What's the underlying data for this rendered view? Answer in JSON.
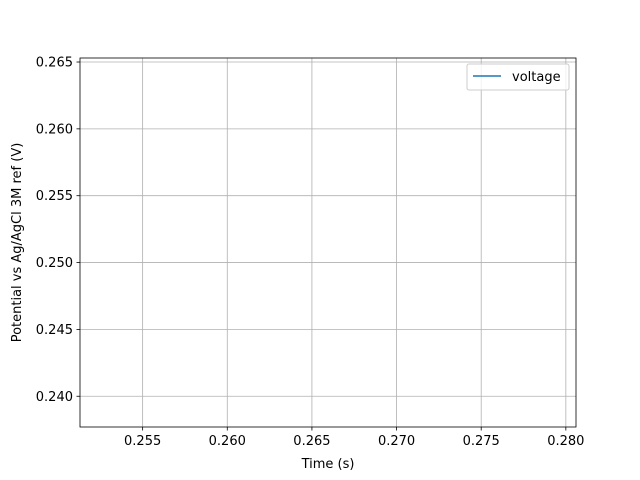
{
  "chart_data": {
    "type": "line",
    "xlabel": "Time (s)",
    "ylabel": "Potential vs Ag/AgCl 3M ref (V)",
    "xlim": [
      0.2513,
      0.2806
    ],
    "ylim": [
      0.2377,
      0.2653
    ],
    "x_ticks": [
      0.255,
      0.26,
      0.265,
      0.27,
      0.275,
      0.28
    ],
    "y_ticks": [
      0.24,
      0.245,
      0.25,
      0.255,
      0.26,
      0.265
    ],
    "x_tick_labels": [
      "0.255",
      "0.260",
      "0.265",
      "0.270",
      "0.275",
      "0.280"
    ],
    "y_tick_labels": [
      "0.240",
      "0.245",
      "0.250",
      "0.255",
      "0.260",
      "0.265"
    ],
    "grid": true,
    "legend_position": "top-right",
    "series": [
      {
        "name": "voltage",
        "color": "#1f77b4",
        "x": [],
        "y": []
      }
    ]
  }
}
